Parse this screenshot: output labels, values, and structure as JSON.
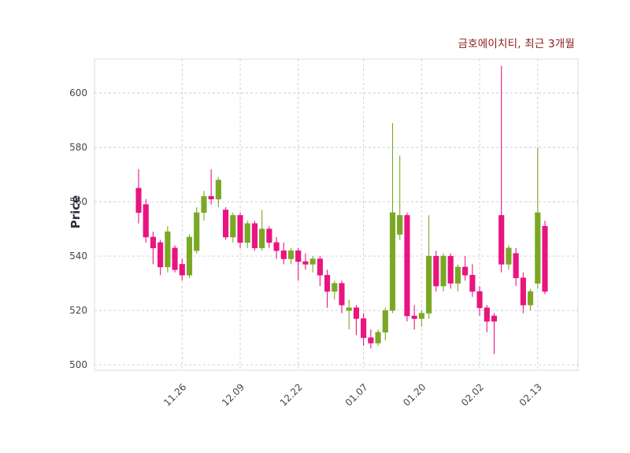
{
  "chart": {
    "title": "금호에이치티, 최근 3개월",
    "ylabel": "Price"
  },
  "chart_data": {
    "type": "candlestick",
    "title": "금호에이치티, 최근 3개월",
    "ylabel": "Price",
    "xlabel": "",
    "grid": true,
    "grid_style": "dashed",
    "ylim": [
      498,
      612.5
    ],
    "yticks": [
      500,
      520,
      540,
      560,
      580,
      600
    ],
    "xticks": {
      "indices": [
        6,
        14,
        22,
        31,
        39,
        47,
        55
      ],
      "labels": [
        "11.26",
        "12.09",
        "12.22",
        "01.07",
        "01.20",
        "02.02",
        "02.13"
      ]
    },
    "up_color": "#7aa826",
    "down_color": "#e91480",
    "grid_color": "#cccccc",
    "tick_color": "#474747",
    "title_color": "#8b1a1a",
    "candles_format": [
      "open",
      "high",
      "low",
      "close"
    ],
    "candles": [
      [
        565,
        572,
        552,
        556
      ],
      [
        559,
        561,
        545,
        547
      ],
      [
        547,
        549,
        537,
        543
      ],
      [
        545,
        546,
        533,
        536
      ],
      [
        536,
        551,
        534,
        549
      ],
      [
        543,
        544,
        534,
        535
      ],
      [
        537,
        539,
        531,
        533
      ],
      [
        533,
        548,
        532,
        547
      ],
      [
        542,
        558,
        541,
        556
      ],
      [
        556,
        564,
        553,
        562
      ],
      [
        562,
        572,
        559,
        561
      ],
      [
        561,
        569,
        558,
        568
      ],
      [
        557,
        558,
        546,
        547
      ],
      [
        547,
        556,
        545,
        555
      ],
      [
        555,
        556,
        543,
        545
      ],
      [
        545,
        553,
        543,
        552
      ],
      [
        552,
        553,
        542,
        543
      ],
      [
        543,
        557,
        542,
        550
      ],
      [
        550,
        551,
        543,
        545
      ],
      [
        545,
        547,
        539,
        542
      ],
      [
        542,
        545,
        537,
        539
      ],
      [
        539,
        543,
        537,
        542
      ],
      [
        542,
        543,
        531,
        538
      ],
      [
        538,
        541,
        535,
        537
      ],
      [
        537,
        540,
        534,
        539
      ],
      [
        539,
        540,
        529,
        533
      ],
      [
        533,
        535,
        521,
        527
      ],
      [
        527,
        531,
        524,
        530
      ],
      [
        530,
        531,
        519,
        522
      ],
      [
        520,
        524,
        513,
        521
      ],
      [
        521,
        522,
        511,
        517
      ],
      [
        517,
        519,
        507,
        510
      ],
      [
        510,
        513,
        506,
        508
      ],
      [
        508,
        513,
        507,
        512
      ],
      [
        512,
        521,
        509,
        520
      ],
      [
        520,
        589,
        519,
        556
      ],
      [
        548,
        577,
        546,
        555
      ],
      [
        555,
        556,
        516,
        518
      ],
      [
        518,
        522,
        513,
        517
      ],
      [
        517,
        520,
        514,
        519
      ],
      [
        519,
        555,
        517,
        540
      ],
      [
        540,
        542,
        527,
        529
      ],
      [
        529,
        541,
        527,
        540
      ],
      [
        540,
        541,
        528,
        530
      ],
      [
        530,
        537,
        527,
        536
      ],
      [
        536,
        540,
        531,
        533
      ],
      [
        533,
        537,
        525,
        527
      ],
      [
        527,
        529,
        518,
        521
      ],
      [
        521,
        522,
        512,
        516
      ],
      [
        518,
        519,
        504,
        516
      ],
      [
        555,
        610,
        534,
        537
      ],
      [
        537,
        544,
        535,
        543
      ],
      [
        541,
        543,
        529,
        532
      ],
      [
        532,
        534,
        519,
        522
      ],
      [
        522,
        528,
        520,
        527
      ],
      [
        530,
        580,
        528,
        556
      ],
      [
        551,
        553,
        526,
        527
      ]
    ]
  }
}
